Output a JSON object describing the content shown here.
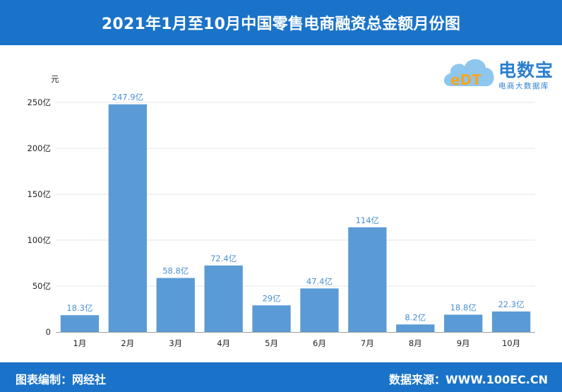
{
  "header": {
    "title": "2021年1月至10月中国零售电商融资总金额月份图"
  },
  "footer": {
    "editor": "图表编制：网经社",
    "source": "数据来源：WWW.100EC.CN"
  },
  "logo": {
    "mark_text": "eDT",
    "brand_text": "电数宝",
    "brand_sub": "电商大数据库"
  },
  "colors": {
    "header_bg": "#1a73c8",
    "bar": "#5b9bd5",
    "value_label": "#4a90d0"
  },
  "chart_data": {
    "type": "bar",
    "title": "2021年1月至10月中国零售电商融资总金额月份图",
    "ylabel": "元",
    "ylim": [
      0,
      250
    ],
    "y_ticks": [
      0,
      50,
      100,
      150,
      200,
      250
    ],
    "y_tick_labels": [
      "0",
      "50亿",
      "100亿",
      "150亿",
      "200亿",
      "250亿"
    ],
    "categories": [
      "1月",
      "2月",
      "3月",
      "4月",
      "5月",
      "6月",
      "7月",
      "8月",
      "9月",
      "10月"
    ],
    "values": [
      18.3,
      247.9,
      58.8,
      72.4,
      29,
      47.4,
      114,
      8.2,
      18.8,
      22.3
    ],
    "value_labels": [
      "18.3亿",
      "247.9亿",
      "58.8亿",
      "72.4亿",
      "29亿",
      "47.4亿",
      "114亿",
      "8.2亿",
      "18.8亿",
      "22.3亿"
    ],
    "grid": true,
    "legend": "none"
  }
}
